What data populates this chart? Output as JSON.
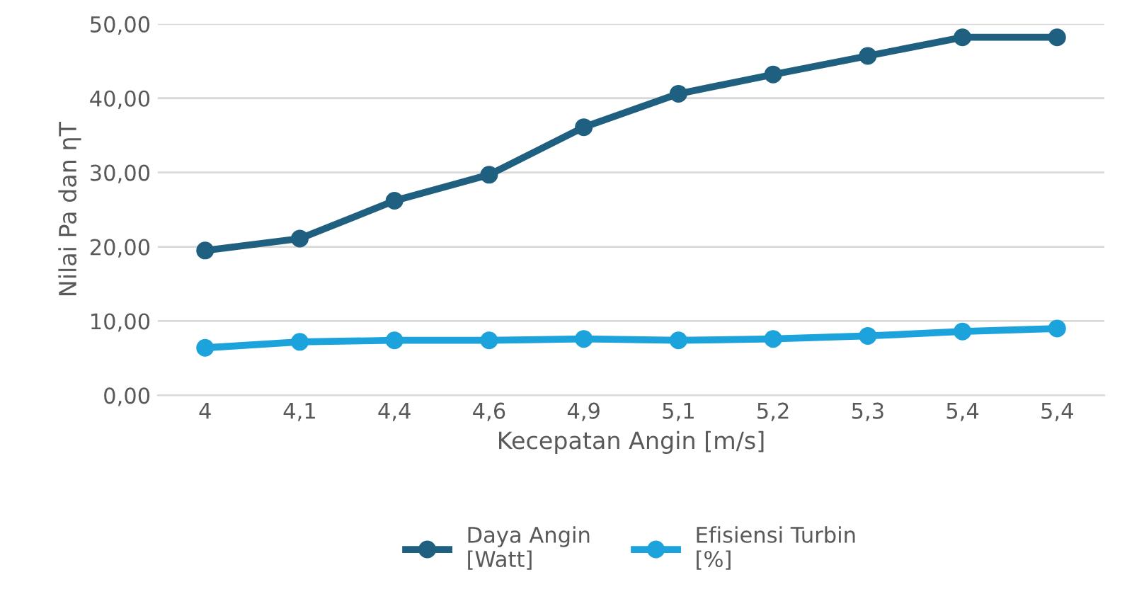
{
  "chart_data": {
    "type": "line",
    "xlabel": "Kecepatan Angin [m/s]",
    "ylabel": "Nilai Pa dan ηT",
    "categories": [
      "4",
      "4,1",
      "4,4",
      "4,6",
      "4,9",
      "5,1",
      "5,2",
      "5,3",
      "5,4",
      "5,4"
    ],
    "series": [
      {
        "name": "Daya Angin\n[Watt]",
        "color": "#1f5f7f",
        "values": [
          19.5,
          21.1,
          26.2,
          29.7,
          36.1,
          40.6,
          43.2,
          45.7,
          48.2,
          48.2
        ]
      },
      {
        "name": "Efisiensi Turbin\n[%]",
        "color": "#1ca3dc",
        "values": [
          6.4,
          7.2,
          7.4,
          7.4,
          7.6,
          7.4,
          7.6,
          8.0,
          8.6,
          9.0
        ]
      }
    ],
    "ylim": [
      0,
      50
    ],
    "yticks": [
      {
        "value": 0,
        "label": "0,00"
      },
      {
        "value": 10,
        "label": "10,00"
      },
      {
        "value": 20,
        "label": "20,00"
      },
      {
        "value": 30,
        "label": "30,00"
      },
      {
        "value": 40,
        "label": "40,00"
      },
      {
        "value": 50,
        "label": "50,00"
      }
    ],
    "grid": "y",
    "legend": "bottom",
    "marker": "circle",
    "line_style": "solid"
  }
}
